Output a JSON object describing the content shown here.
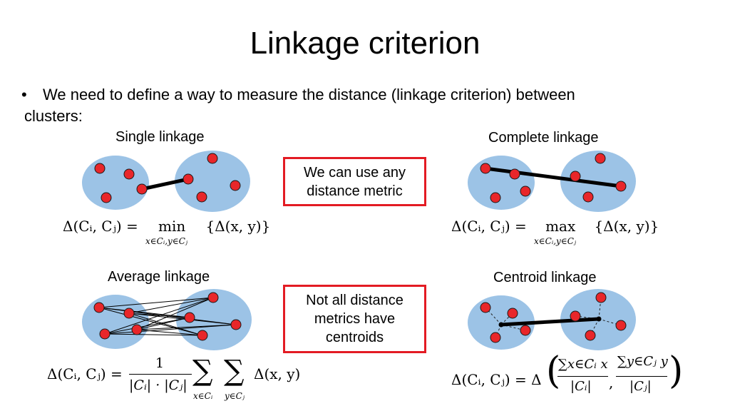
{
  "slide": {
    "title": "Linkage criterion",
    "bullet_marker": "•",
    "bullet_line1": "We need to define a way to measure the distance (linkage criterion) between",
    "bullet_line2": "clusters:"
  },
  "panels": {
    "single": {
      "label": "Single linkage",
      "formula_lhs": "Δ(Cᵢ, Cⱼ) =",
      "formula_op": "min",
      "formula_under": "x∈Cᵢ,y∈Cⱼ",
      "formula_rhs": "{Δ(x, y)}"
    },
    "complete": {
      "label": "Complete linkage",
      "formula_lhs": "Δ(Cᵢ, Cⱼ) =",
      "formula_op": "max",
      "formula_under": "x∈Cᵢ,y∈Cⱼ",
      "formula_rhs": "{Δ(x, y)}"
    },
    "average": {
      "label": "Average linkage",
      "formula_lhs": "Δ(Cᵢ, Cⱼ) =",
      "formula_num": "1",
      "formula_den": "|Cᵢ| · |Cⱼ|",
      "formula_sum1": "∑",
      "formula_sum1_under": "x∈Cᵢ",
      "formula_sum2": "∑",
      "formula_sum2_under": "y∈Cⱼ",
      "formula_rhs": "Δ(x, y)"
    },
    "centroid": {
      "label": "Centroid linkage",
      "formula_lhs": "Δ(Cᵢ, Cⱼ) = Δ",
      "formula_num1": "∑x∈Cᵢ x",
      "formula_den1": "|Cᵢ|",
      "formula_comma": ",",
      "formula_num2": "∑y∈Cⱼ y",
      "formula_den2": "|Cⱼ|"
    }
  },
  "callouts": {
    "metric": [
      "We can use any",
      "distance metric"
    ],
    "centroids": [
      "Not all distance",
      "metrics have",
      "centroids"
    ]
  },
  "colors": {
    "cluster_fill": "#9cc3e6",
    "point_fill": "#e8262a",
    "point_stroke": "#1a1a1a",
    "callout_border": "#e31b23"
  }
}
